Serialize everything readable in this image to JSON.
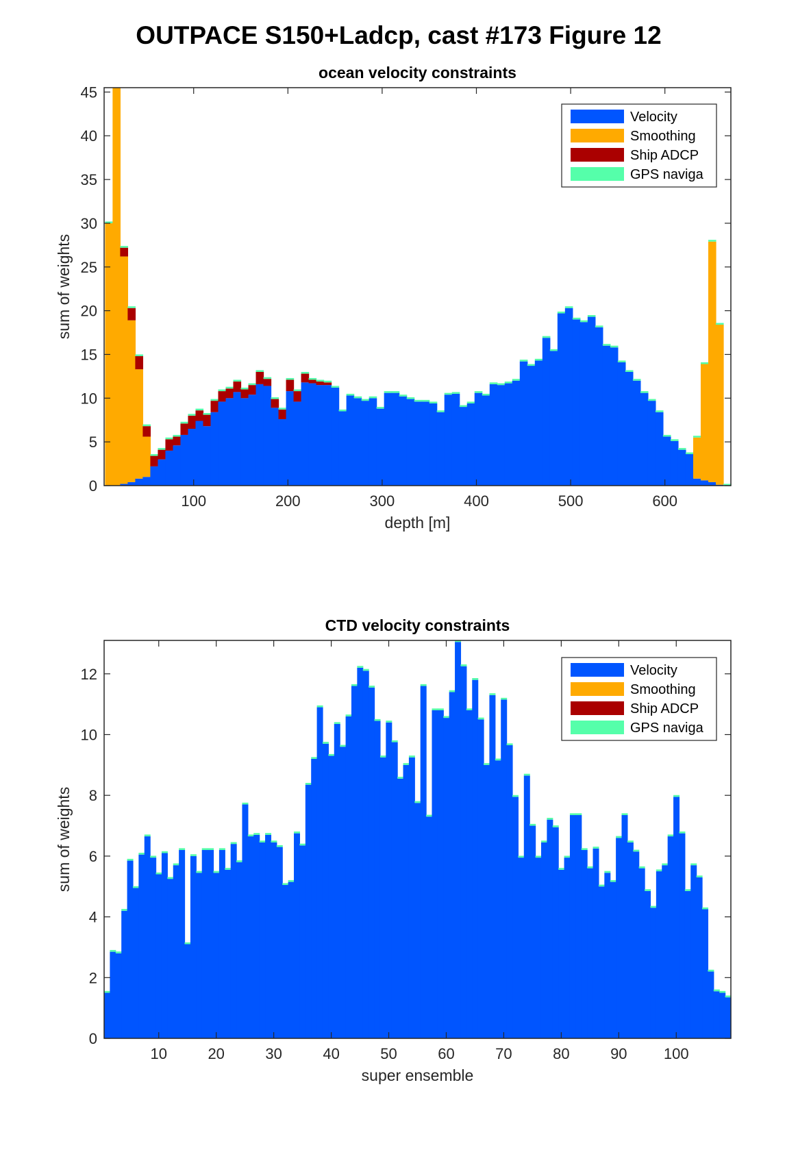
{
  "figure_title": "OUTPACE S150+Ladcp, cast #173  Figure 12",
  "legend": [
    {
      "label": "Velocity",
      "color": "#0055ff"
    },
    {
      "label": "Smoothing",
      "color": "#ffaa00"
    },
    {
      "label": "Ship ADCP",
      "color": "#aa0000"
    },
    {
      "label": "GPS naviga",
      "color": "#55ffaa"
    }
  ],
  "chart_data": [
    {
      "type": "bar",
      "stacked": true,
      "title": "ocean velocity constraints",
      "xlabel": "depth [m]",
      "ylabel": "sum of weights",
      "xlim": [
        5,
        670
      ],
      "ylim": [
        0,
        45.5
      ],
      "xticks": [
        100,
        200,
        300,
        400,
        500,
        600
      ],
      "yticks": [
        0,
        5,
        10,
        15,
        20,
        25,
        30,
        35,
        40,
        45
      ],
      "bin_width": 8,
      "legend_position": "top-right",
      "x": [
        10,
        18,
        26,
        34,
        42,
        50,
        58,
        66,
        74,
        82,
        90,
        98,
        106,
        114,
        122,
        130,
        138,
        146,
        154,
        162,
        170,
        178,
        186,
        194,
        202,
        210,
        218,
        226,
        234,
        242,
        250,
        258,
        266,
        274,
        282,
        290,
        298,
        306,
        314,
        322,
        330,
        338,
        346,
        354,
        362,
        370,
        378,
        386,
        394,
        402,
        410,
        418,
        426,
        434,
        442,
        450,
        458,
        466,
        474,
        482,
        490,
        498,
        506,
        514,
        522,
        530,
        538,
        546,
        554,
        562,
        570,
        578,
        586,
        594,
        602,
        610,
        618,
        626,
        634,
        642,
        650,
        658,
        666
      ],
      "series": [
        {
          "name": "Velocity",
          "values": [
            0.0,
            0.0,
            0.2,
            0.4,
            0.8,
            1.0,
            2.2,
            3.0,
            4.0,
            4.6,
            5.8,
            6.5,
            7.4,
            6.8,
            8.4,
            9.6,
            10.0,
            10.7,
            10.0,
            10.4,
            11.6,
            11.4,
            8.9,
            7.6,
            10.8,
            9.6,
            11.8,
            11.7,
            11.5,
            11.5,
            11.2,
            8.5,
            10.3,
            10.0,
            9.7,
            10.0,
            8.8,
            10.6,
            10.6,
            10.2,
            9.9,
            9.6,
            9.6,
            9.4,
            8.4,
            10.4,
            10.5,
            9.0,
            9.4,
            10.6,
            10.3,
            11.6,
            11.5,
            11.7,
            12.0,
            14.2,
            13.7,
            14.3,
            16.9,
            15.4,
            19.7,
            20.3,
            19.0,
            18.7,
            19.3,
            18.1,
            16.0,
            15.8,
            14.1,
            13.0,
            12.0,
            10.6,
            9.7,
            8.4,
            5.6,
            5.1,
            4.1,
            3.6,
            0.8,
            0.6,
            0.4,
            0.1,
            0.0
          ]
        },
        {
          "name": "Smoothing",
          "values": [
            30.0,
            45.5,
            26.0,
            18.5,
            12.5,
            4.6,
            0.0,
            0.0,
            0.0,
            0.0,
            0.0,
            0.0,
            0.0,
            0.0,
            0.0,
            0.0,
            0.0,
            0.0,
            0.0,
            0.0,
            0.0,
            0.0,
            0.0,
            0.0,
            0.0,
            0.0,
            0.0,
            0.0,
            0.0,
            0.0,
            0.0,
            0.0,
            0.0,
            0.0,
            0.0,
            0.0,
            0.0,
            0.0,
            0.0,
            0.0,
            0.0,
            0.0,
            0.0,
            0.0,
            0.0,
            0.0,
            0.0,
            0.0,
            0.0,
            0.0,
            0.0,
            0.0,
            0.0,
            0.0,
            0.0,
            0.0,
            0.0,
            0.0,
            0.0,
            0.0,
            0.0,
            0.0,
            0.0,
            0.0,
            0.0,
            0.0,
            0.0,
            0.0,
            0.0,
            0.0,
            0.0,
            0.0,
            0.0,
            0.0,
            0.0,
            0.0,
            0.0,
            0.0,
            4.7,
            13.3,
            27.5,
            18.3,
            0.0
          ]
        },
        {
          "name": "Ship ADCP",
          "values": [
            0.0,
            0.0,
            1.0,
            1.4,
            1.5,
            1.2,
            1.2,
            1.1,
            1.3,
            1.0,
            1.3,
            1.5,
            1.2,
            1.3,
            1.3,
            1.2,
            1.1,
            1.2,
            1.0,
            1.1,
            1.4,
            0.8,
            1.0,
            1.1,
            1.3,
            1.2,
            1.0,
            0.4,
            0.4,
            0.3,
            0.0,
            0.0,
            0.0,
            0.0,
            0.0,
            0.0,
            0.0,
            0.0,
            0.0,
            0.0,
            0.0,
            0.0,
            0.0,
            0.0,
            0.0,
            0.0,
            0.0,
            0.0,
            0.0,
            0.0,
            0.0,
            0.0,
            0.0,
            0.0,
            0.0,
            0.0,
            0.0,
            0.0,
            0.0,
            0.0,
            0.0,
            0.0,
            0.0,
            0.0,
            0.0,
            0.0,
            0.0,
            0.0,
            0.0,
            0.0,
            0.0,
            0.0,
            0.0,
            0.0,
            0.0,
            0.0,
            0.0,
            0.0,
            0.0,
            0.0,
            0.0,
            0.0,
            0.0
          ]
        },
        {
          "name": "GPS naviga",
          "values": [
            0.2,
            0.2,
            0.2,
            0.2,
            0.2,
            0.2,
            0.2,
            0.2,
            0.2,
            0.2,
            0.2,
            0.2,
            0.2,
            0.2,
            0.2,
            0.2,
            0.2,
            0.2,
            0.2,
            0.2,
            0.2,
            0.2,
            0.2,
            0.2,
            0.2,
            0.2,
            0.2,
            0.2,
            0.2,
            0.2,
            0.2,
            0.2,
            0.2,
            0.2,
            0.2,
            0.2,
            0.2,
            0.2,
            0.2,
            0.2,
            0.2,
            0.2,
            0.2,
            0.2,
            0.2,
            0.2,
            0.2,
            0.2,
            0.2,
            0.2,
            0.2,
            0.2,
            0.2,
            0.2,
            0.2,
            0.2,
            0.2,
            0.2,
            0.2,
            0.2,
            0.2,
            0.2,
            0.2,
            0.2,
            0.2,
            0.2,
            0.2,
            0.2,
            0.2,
            0.2,
            0.2,
            0.2,
            0.2,
            0.2,
            0.2,
            0.2,
            0.2,
            0.2,
            0.2,
            0.2,
            0.2,
            0.2,
            0.2
          ]
        }
      ]
    },
    {
      "type": "bar",
      "stacked": true,
      "title": "CTD velocity constraints",
      "xlabel": "super ensemble",
      "ylabel": "sum of weights",
      "xlim": [
        0.5,
        109.5
      ],
      "ylim": [
        0,
        13.1
      ],
      "xticks": [
        10,
        20,
        30,
        40,
        50,
        60,
        70,
        80,
        90,
        100
      ],
      "yticks": [
        0,
        2,
        4,
        6,
        8,
        10,
        12
      ],
      "bin_width": 1,
      "legend_position": "top-right",
      "series": [
        {
          "name": "Velocity",
          "values": [
            1.5,
            2.85,
            2.8,
            4.2,
            5.85,
            4.95,
            6.05,
            6.65,
            5.95,
            5.4,
            6.1,
            5.25,
            5.7,
            6.2,
            3.1,
            6.0,
            5.45,
            6.2,
            6.2,
            5.45,
            6.2,
            5.55,
            6.4,
            5.8,
            7.7,
            6.65,
            6.7,
            6.45,
            6.7,
            6.45,
            6.3,
            5.05,
            5.15,
            6.75,
            6.35,
            8.35,
            9.2,
            10.9,
            9.7,
            9.3,
            10.35,
            9.6,
            10.6,
            11.6,
            12.2,
            12.1,
            11.55,
            10.45,
            9.25,
            10.4,
            9.75,
            8.55,
            9.0,
            9.25,
            7.75,
            11.6,
            7.3,
            10.8,
            10.8,
            10.55,
            11.4,
            13.05,
            12.25,
            10.8,
            11.8,
            10.5,
            9.0,
            11.3,
            9.15,
            11.15,
            9.65,
            7.95,
            5.95,
            8.65,
            7.0,
            5.95,
            6.45,
            7.2,
            6.95,
            5.55,
            5.95,
            7.35,
            7.35,
            6.2,
            5.6,
            6.25,
            5.0,
            5.45,
            5.15,
            6.6,
            7.35,
            6.45,
            6.15,
            5.6,
            4.85,
            4.3,
            5.5,
            5.7,
            6.65,
            7.95,
            6.75,
            4.85,
            5.7,
            5.3,
            4.25,
            2.2,
            1.55,
            1.5,
            1.35
          ]
        },
        {
          "name": "Smoothing",
          "values": [
            0,
            0,
            0,
            0,
            0,
            0,
            0,
            0,
            0,
            0,
            0,
            0,
            0,
            0,
            0,
            0,
            0,
            0,
            0,
            0,
            0,
            0,
            0,
            0,
            0,
            0,
            0,
            0,
            0,
            0,
            0,
            0,
            0,
            0,
            0,
            0,
            0,
            0,
            0,
            0,
            0,
            0,
            0,
            0,
            0,
            0,
            0,
            0,
            0,
            0,
            0,
            0,
            0,
            0,
            0,
            0,
            0,
            0,
            0,
            0,
            0,
            0,
            0,
            0,
            0,
            0,
            0,
            0,
            0,
            0,
            0,
            0,
            0,
            0,
            0,
            0,
            0,
            0,
            0,
            0,
            0,
            0,
            0,
            0,
            0,
            0,
            0,
            0,
            0,
            0,
            0,
            0,
            0,
            0,
            0,
            0,
            0,
            0,
            0,
            0,
            0,
            0,
            0,
            0,
            0,
            0,
            0,
            0,
            0
          ]
        },
        {
          "name": "Ship ADCP",
          "values": [
            0,
            0,
            0,
            0,
            0,
            0,
            0,
            0,
            0,
            0,
            0,
            0,
            0,
            0,
            0,
            0,
            0,
            0,
            0,
            0,
            0,
            0,
            0,
            0,
            0,
            0,
            0,
            0,
            0,
            0,
            0,
            0,
            0,
            0,
            0,
            0,
            0,
            0,
            0,
            0,
            0,
            0,
            0,
            0,
            0,
            0,
            0,
            0,
            0,
            0,
            0,
            0,
            0,
            0,
            0,
            0,
            0,
            0,
            0,
            0,
            0,
            0,
            0,
            0,
            0,
            0,
            0,
            0,
            0,
            0,
            0,
            0,
            0,
            0,
            0,
            0,
            0,
            0,
            0,
            0,
            0,
            0,
            0,
            0,
            0,
            0,
            0,
            0,
            0,
            0,
            0,
            0,
            0,
            0,
            0,
            0,
            0,
            0,
            0,
            0,
            0,
            0,
            0,
            0,
            0,
            0,
            0,
            0,
            0
          ]
        },
        {
          "name": "GPS naviga",
          "values": [
            0.06,
            0.06,
            0.06,
            0.06,
            0.06,
            0.06,
            0.06,
            0.06,
            0.06,
            0.06,
            0.06,
            0.06,
            0.06,
            0.06,
            0.06,
            0.06,
            0.06,
            0.06,
            0.06,
            0.06,
            0.06,
            0.06,
            0.06,
            0.06,
            0.06,
            0.06,
            0.06,
            0.06,
            0.06,
            0.06,
            0.06,
            0.06,
            0.06,
            0.06,
            0.06,
            0.06,
            0.06,
            0.06,
            0.06,
            0.06,
            0.06,
            0.06,
            0.06,
            0.06,
            0.06,
            0.06,
            0.06,
            0.06,
            0.06,
            0.06,
            0.06,
            0.06,
            0.06,
            0.06,
            0.06,
            0.06,
            0.06,
            0.06,
            0.06,
            0.06,
            0.06,
            0.06,
            0.06,
            0.06,
            0.06,
            0.06,
            0.06,
            0.06,
            0.06,
            0.06,
            0.06,
            0.06,
            0.06,
            0.06,
            0.06,
            0.06,
            0.06,
            0.06,
            0.06,
            0.06,
            0.06,
            0.06,
            0.06,
            0.06,
            0.06,
            0.06,
            0.06,
            0.06,
            0.06,
            0.06,
            0.06,
            0.06,
            0.06,
            0.06,
            0.06,
            0.06,
            0.06,
            0.06,
            0.06,
            0.06,
            0.06,
            0.06,
            0.06,
            0.06,
            0.06,
            0.06,
            0.06,
            0.06,
            0.06
          ]
        }
      ]
    }
  ]
}
